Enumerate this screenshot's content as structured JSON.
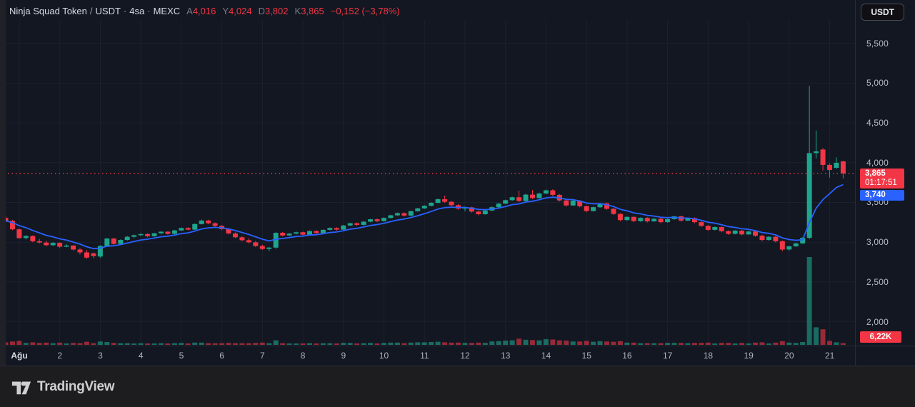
{
  "header": {
    "symbol": "Ninja Squad Token",
    "sep_slash": "/",
    "quote": "USDT",
    "sep_dot": "·",
    "interval": "4sa",
    "exchange": "MEXC",
    "open_label": "A",
    "open": "4,016",
    "high_label": "Y",
    "high": "4,024",
    "low_label": "D",
    "low": "3,802",
    "close_label": "K",
    "close": "3,865",
    "change": "−0,152 (−3,78%)"
  },
  "toolbar": {
    "currency_button": "USDT"
  },
  "price_axis": {
    "gridlines": [
      {
        "value": 5500,
        "label": "5,500"
      },
      {
        "value": 5000,
        "label": "5,000"
      },
      {
        "value": 4500,
        "label": "4,500"
      },
      {
        "value": 4000,
        "label": "4,000"
      },
      {
        "value": 3500,
        "label": "3,500"
      },
      {
        "value": 3000,
        "label": "3,000"
      },
      {
        "value": 2500,
        "label": "2,500"
      },
      {
        "value": 2000,
        "label": "2,000"
      }
    ],
    "last_price": {
      "value": 3865,
      "label": "3,865",
      "countdown": "01:17:51"
    },
    "ma_value": {
      "value": 3740,
      "label": "3,740"
    },
    "volume_label": "6,22K"
  },
  "time_scale": {
    "ticks": [
      {
        "label": "Ağu",
        "day": 1,
        "month_start": true
      },
      {
        "label": "2",
        "day": 2
      },
      {
        "label": "3",
        "day": 3
      },
      {
        "label": "4",
        "day": 4
      },
      {
        "label": "5",
        "day": 5
      },
      {
        "label": "6",
        "day": 6
      },
      {
        "label": "7",
        "day": 7
      },
      {
        "label": "8",
        "day": 8
      },
      {
        "label": "9",
        "day": 9
      },
      {
        "label": "10",
        "day": 10
      },
      {
        "label": "11",
        "day": 11
      },
      {
        "label": "12",
        "day": 12
      },
      {
        "label": "13",
        "day": 13
      },
      {
        "label": "14",
        "day": 14
      },
      {
        "label": "15",
        "day": 15
      },
      {
        "label": "16",
        "day": 16
      },
      {
        "label": "17",
        "day": 17
      },
      {
        "label": "18",
        "day": 18
      },
      {
        "label": "19",
        "day": 19
      },
      {
        "label": "20",
        "day": 20
      },
      {
        "label": "21",
        "day": 21
      }
    ]
  },
  "footer": {
    "logo_text": "TradingView"
  },
  "colors": {
    "up": "#1ea58e",
    "down": "#f23645",
    "ma_line": "#2962ff",
    "background": "#131722",
    "grid": "#1d212e",
    "axis_text": "#b6bac5",
    "last_price_line": "#f23645"
  },
  "chart_data": {
    "type": "candlestick",
    "title": "Ninja Squad Token / USDT · 4sa · MEXC",
    "interval": "4h",
    "exchange": "MEXC",
    "ylabel": "price (USDT, x1000 shown as 3,865 style)",
    "ylim": [
      1950,
      5800
    ],
    "x_range": "Aug 1 – Aug 21 (4h bars)",
    "legend_position": "top-left",
    "grid": true,
    "last_price": 3865,
    "moving_average": {
      "type": "EMA",
      "length": 9,
      "alpha": 0.2,
      "last_value": 3740
    },
    "volume_last": "6.22K",
    "volume_max_estimate": 310,
    "candles_format": [
      "open",
      "high",
      "low",
      "close",
      "volume_k"
    ],
    "candles": [
      [
        3305,
        3325,
        3250,
        3268,
        9
      ],
      [
        3268,
        3280,
        3150,
        3162,
        12
      ],
      [
        3162,
        3175,
        3040,
        3052,
        14
      ],
      [
        3052,
        3090,
        3035,
        3078,
        7
      ],
      [
        3078,
        3085,
        3000,
        3012,
        9
      ],
      [
        3012,
        3040,
        2985,
        2995,
        7
      ],
      [
        2995,
        3020,
        2950,
        2962,
        8
      ],
      [
        2962,
        3000,
        2955,
        2992,
        6
      ],
      [
        2992,
        2998,
        2930,
        2943,
        8
      ],
      [
        2943,
        2975,
        2935,
        2958,
        5
      ],
      [
        2958,
        2962,
        2895,
        2908,
        7
      ],
      [
        2908,
        2925,
        2845,
        2872,
        6
      ],
      [
        2872,
        2902,
        2790,
        2806,
        11
      ],
      [
        2860,
        2870,
        2798,
        2826,
        6
      ],
      [
        2820,
        2962,
        2802,
        2952,
        12
      ],
      [
        2952,
        3052,
        2945,
        3046,
        10
      ],
      [
        3046,
        3055,
        2968,
        2978,
        7
      ],
      [
        2978,
        3035,
        2972,
        3028,
        6
      ],
      [
        3028,
        3078,
        3020,
        3068,
        6
      ],
      [
        3068,
        3095,
        3052,
        3088,
        5
      ],
      [
        3088,
        3110,
        3075,
        3102,
        6
      ],
      [
        3102,
        3112,
        3062,
        3075,
        5
      ],
      [
        3075,
        3118,
        3068,
        3112,
        5
      ],
      [
        3112,
        3140,
        3100,
        3132,
        6
      ],
      [
        3132,
        3138,
        3095,
        3105,
        5
      ],
      [
        3105,
        3155,
        3098,
        3148,
        6
      ],
      [
        3148,
        3185,
        3140,
        3178,
        7
      ],
      [
        3178,
        3188,
        3148,
        3158,
        5
      ],
      [
        3158,
        3235,
        3152,
        3228,
        8
      ],
      [
        3228,
        3285,
        3222,
        3272,
        8
      ],
      [
        3272,
        3282,
        3225,
        3238,
        6
      ],
      [
        3238,
        3248,
        3192,
        3205,
        6
      ],
      [
        3205,
        3215,
        3152,
        3165,
        6
      ],
      [
        3165,
        3172,
        3098,
        3110,
        7
      ],
      [
        3110,
        3122,
        3050,
        3062,
        6
      ],
      [
        3062,
        3075,
        3012,
        3025,
        6
      ],
      [
        3025,
        3048,
        2985,
        2998,
        6
      ],
      [
        2998,
        3015,
        2940,
        2952,
        7
      ],
      [
        2952,
        2968,
        2902,
        2915,
        8
      ],
      [
        2915,
        2942,
        2888,
        2932,
        6
      ],
      [
        2932,
        3125,
        2918,
        3118,
        16
      ],
      [
        3118,
        3128,
        3072,
        3085,
        6
      ],
      [
        3085,
        3115,
        3078,
        3108,
        5
      ],
      [
        3108,
        3135,
        3098,
        3125,
        5
      ],
      [
        3125,
        3132,
        3085,
        3095,
        5
      ],
      [
        3095,
        3148,
        3088,
        3140,
        6
      ],
      [
        3140,
        3150,
        3105,
        3115,
        5
      ],
      [
        3115,
        3162,
        3108,
        3155,
        6
      ],
      [
        3155,
        3185,
        3148,
        3178,
        6
      ],
      [
        3178,
        3188,
        3145,
        3158,
        5
      ],
      [
        3158,
        3218,
        3150,
        3210,
        7
      ],
      [
        3210,
        3245,
        3202,
        3238,
        7
      ],
      [
        3238,
        3248,
        3205,
        3218,
        5
      ],
      [
        3218,
        3265,
        3210,
        3258,
        6
      ],
      [
        3258,
        3295,
        3250,
        3288,
        7
      ],
      [
        3288,
        3298,
        3252,
        3265,
        5
      ],
      [
        3265,
        3312,
        3258,
        3305,
        7
      ],
      [
        3305,
        3345,
        3298,
        3338,
        8
      ],
      [
        3338,
        3372,
        3330,
        3365,
        8
      ],
      [
        3365,
        3375,
        3322,
        3335,
        6
      ],
      [
        3335,
        3398,
        3328,
        3390,
        8
      ],
      [
        3390,
        3432,
        3382,
        3425,
        9
      ],
      [
        3425,
        3465,
        3418,
        3458,
        9
      ],
      [
        3458,
        3502,
        3450,
        3495,
        10
      ],
      [
        3495,
        3548,
        3488,
        3540,
        11
      ],
      [
        3540,
        3585,
        3495,
        3508,
        9
      ],
      [
        3508,
        3518,
        3452,
        3465,
        8
      ],
      [
        3465,
        3478,
        3408,
        3422,
        8
      ],
      [
        3422,
        3448,
        3388,
        3438,
        7
      ],
      [
        3438,
        3445,
        3372,
        3385,
        7
      ],
      [
        3385,
        3395,
        3338,
        3352,
        8
      ],
      [
        3352,
        3405,
        3345,
        3398,
        7
      ],
      [
        3398,
        3448,
        3390,
        3440,
        12
      ],
      [
        3440,
        3492,
        3432,
        3485,
        13
      ],
      [
        3485,
        3535,
        3478,
        3528,
        15
      ],
      [
        3528,
        3572,
        3520,
        3565,
        16
      ],
      [
        3565,
        3648,
        3505,
        3518,
        22
      ],
      [
        3518,
        3608,
        3510,
        3598,
        18
      ],
      [
        3598,
        3655,
        3542,
        3555,
        17
      ],
      [
        3555,
        3622,
        3548,
        3612,
        16
      ],
      [
        3612,
        3662,
        3605,
        3652,
        20
      ],
      [
        3652,
        3665,
        3582,
        3595,
        19
      ],
      [
        3595,
        3605,
        3512,
        3525,
        16
      ],
      [
        3525,
        3538,
        3448,
        3462,
        15
      ],
      [
        3462,
        3532,
        3455,
        3522,
        12
      ],
      [
        3522,
        3530,
        3438,
        3452,
        12
      ],
      [
        3452,
        3462,
        3378,
        3392,
        14
      ],
      [
        3392,
        3448,
        3385,
        3440,
        11
      ],
      [
        3440,
        3495,
        3432,
        3488,
        13
      ],
      [
        3488,
        3498,
        3408,
        3420,
        12
      ],
      [
        3420,
        3430,
        3342,
        3355,
        11
      ],
      [
        3355,
        3365,
        3262,
        3278,
        13
      ],
      [
        3278,
        3325,
        3270,
        3318,
        8
      ],
      [
        3318,
        3328,
        3252,
        3265,
        8
      ],
      [
        3265,
        3312,
        3258,
        3305,
        6
      ],
      [
        3305,
        3315,
        3248,
        3262,
        6
      ],
      [
        3262,
        3302,
        3255,
        3295,
        6
      ],
      [
        3295,
        3305,
        3238,
        3252,
        6
      ],
      [
        3252,
        3298,
        3245,
        3290,
        7
      ],
      [
        3290,
        3332,
        3282,
        3325,
        7
      ],
      [
        3325,
        3335,
        3258,
        3272,
        7
      ],
      [
        3272,
        3310,
        3265,
        3302,
        6
      ],
      [
        3302,
        3312,
        3238,
        3252,
        7
      ],
      [
        3252,
        3262,
        3192,
        3205,
        7
      ],
      [
        3205,
        3215,
        3142,
        3155,
        8
      ],
      [
        3155,
        3198,
        3148,
        3190,
        5
      ],
      [
        3190,
        3198,
        3125,
        3138,
        7
      ],
      [
        3138,
        3148,
        3092,
        3105,
        7
      ],
      [
        3105,
        3152,
        3098,
        3145,
        5
      ],
      [
        3145,
        3155,
        3085,
        3098,
        7
      ],
      [
        3098,
        3142,
        3090,
        3135,
        5
      ],
      [
        3135,
        3145,
        3068,
        3082,
        8
      ],
      [
        3082,
        3092,
        3012,
        3028,
        9
      ],
      [
        3028,
        3075,
        3020,
        3068,
        5
      ],
      [
        3068,
        3078,
        2998,
        3012,
        8
      ],
      [
        3012,
        3022,
        2888,
        2908,
        13
      ],
      [
        2908,
        2955,
        2895,
        2948,
        8
      ],
      [
        2948,
        2992,
        2940,
        2985,
        7
      ],
      [
        2985,
        3062,
        2978,
        3055,
        10
      ],
      [
        3055,
        4965,
        3038,
        4120,
        310
      ],
      [
        4120,
        4405,
        4052,
        4142,
        62
      ],
      [
        4165,
        4182,
        3902,
        3972,
        55
      ],
      [
        3972,
        3988,
        3812,
        3908,
        14
      ],
      [
        3935,
        4068,
        3922,
        3998,
        9
      ],
      [
        4016,
        4024,
        3802,
        3865,
        6.22
      ]
    ]
  }
}
